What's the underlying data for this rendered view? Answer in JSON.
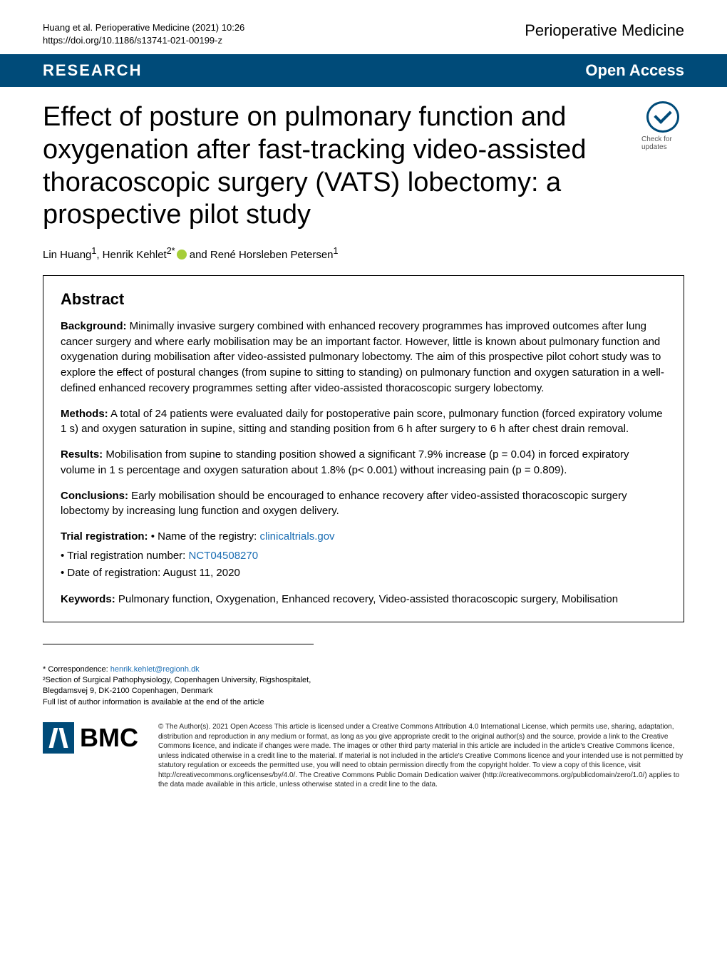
{
  "header": {
    "citation_line": "Huang et al. Perioperative Medicine          (2021) 10:26",
    "doi_line": "https://doi.org/10.1186/s13741-021-00199-z",
    "journal": "Perioperative Medicine"
  },
  "banner": {
    "left": "RESEARCH",
    "right": "Open Access"
  },
  "check_badge": {
    "label": "Check for updates"
  },
  "title": "Effect of posture on pulmonary function and oxygenation after fast-tracking video-assisted thoracoscopic surgery (VATS) lobectomy: a prospective pilot study",
  "authors": {
    "a1": "Lin Huang",
    "sup1": "1",
    "a2_pre": ", Henrik Kehlet",
    "sup2": "2*",
    "a3_pre": " and René Horsleben Petersen",
    "sup3": "1"
  },
  "abstract": {
    "heading": "Abstract",
    "background_label": "Background:",
    "background_text": " Minimally invasive surgery combined with enhanced recovery programmes has improved outcomes after lung cancer surgery and where early mobilisation may be an important factor. However, little is known about pulmonary function and oxygenation during mobilisation after video-assisted pulmonary lobectomy. The aim of this prospective pilot cohort study was to explore the effect of postural changes (from supine to sitting to standing) on pulmonary function and oxygen saturation in a well-defined enhanced recovery programmes setting after video-assisted thoracoscopic surgery lobectomy.",
    "methods_label": "Methods:",
    "methods_text": " A total of 24 patients were evaluated daily for postoperative pain score, pulmonary function (forced expiratory volume 1 s) and oxygen saturation in supine, sitting and standing position from 6 h after surgery to 6 h after chest drain removal.",
    "results_label": "Results:",
    "results_text": " Mobilisation from supine to standing position showed a significant 7.9% increase (p = 0.04) in forced expiratory volume in 1 s percentage and oxygen saturation about 1.8% (p< 0.001) without increasing pain (p = 0.809).",
    "conclusions_label": "Conclusions:",
    "conclusions_text": " Early mobilisation should be encouraged to enhance recovery after video-assisted thoracoscopic surgery lobectomy by increasing lung function and oxygen delivery.",
    "trial_label": "Trial registration:",
    "trial_items": {
      "i1_pre": " • Name of the registry: ",
      "i1_link": "clinicaltrials.gov",
      "i2_pre": "• Trial registration number: ",
      "i2_link": "NCT04508270",
      "i3": "• Date of registration: August 11, 2020"
    },
    "keywords_label": "Keywords:",
    "keywords_text": " Pulmonary function, Oxygenation, Enhanced recovery, Video-assisted thoracoscopic surgery, Mobilisation"
  },
  "correspondence": {
    "line1_pre": "* Correspondence: ",
    "line1_link": "henrik.kehlet@regionh.dk",
    "line2": "²Section of Surgical Pathophysiology, Copenhagen University, Rigshospitalet, Blegdamsvej 9, DK-2100 Copenhagen, Denmark",
    "line3": "Full list of author information is available at the end of the article"
  },
  "bmc": {
    "text": "BMC"
  },
  "license": {
    "text": "© The Author(s). 2021 Open Access This article is licensed under a Creative Commons Attribution 4.0 International License, which permits use, sharing, adaptation, distribution and reproduction in any medium or format, as long as you give appropriate credit to the original author(s) and the source, provide a link to the Creative Commons licence, and indicate if changes were made. The images or other third party material in this article are included in the article's Creative Commons licence, unless indicated otherwise in a credit line to the material. If material is not included in the article's Creative Commons licence and your intended use is not permitted by statutory regulation or exceeds the permitted use, you will need to obtain permission directly from the copyright holder. To view a copy of this licence, visit http://creativecommons.org/licenses/by/4.0/. The Creative Commons Public Domain Dedication waiver (http://creativecommons.org/publicdomain/zero/1.0/) applies to the data made available in this article, unless otherwise stated in a credit line to the data."
  },
  "colors": {
    "brand_blue": "#004b79",
    "link_blue": "#1a6db3",
    "orcid_green": "#a6ce39",
    "text_black": "#000000",
    "background": "#ffffff"
  }
}
